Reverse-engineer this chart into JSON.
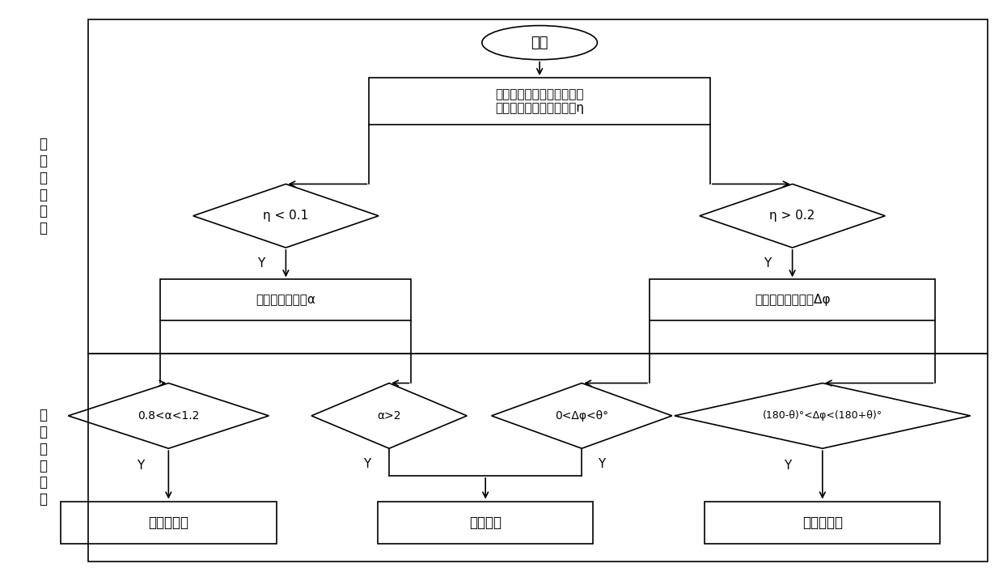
{
  "bg_color": "#ffffff",
  "fig_width": 12.4,
  "fig_height": 7.02,
  "dpi": 100,
  "top_label": "故\n障\n类\n型\n判\n别",
  "bot_label": "故\n障\n区\n段\n判\n别",
  "start_text": "开始",
  "collect_text": "采集各线路区段两侧的电流\n信息，计算正负序电流及η",
  "d1_text": "η < 0.1",
  "d2_text": "η > 0.2",
  "sym_text": "对称故障，计算α",
  "asym_text": "非对称故障，计算Δφ",
  "db1_text": "0.8<α<1.2",
  "db2_text": "α>2",
  "db3_text": "0<Δφ<θ°",
  "db4_text": "(180-θ)°<Δφ<(180+θ)°",
  "r1_text": "非故障区段",
  "r2_text": "故障区段",
  "r3_text": "非故障区段",
  "Y_label": "Y"
}
